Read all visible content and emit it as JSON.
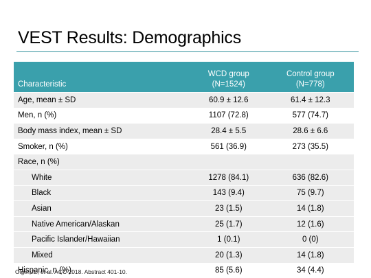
{
  "slide": {
    "title": "VEST Results: Demographics",
    "footnote": "Olgin JE, et al. ACC 2018. Abstract 401-10."
  },
  "table": {
    "headers": {
      "characteristic": "Characteristic",
      "wcd_line1": "WCD group",
      "wcd_line2": "(N=1524)",
      "control_line1": "Control group",
      "control_line2": "(N=778)"
    },
    "rows": [
      {
        "label": "Age, mean ± SD",
        "wcd": "60.9 ± 12.6",
        "control": "61.4 ± 12.3"
      },
      {
        "label": "Men, n (%)",
        "wcd": "1107 (72.8)",
        "control": "577 (74.7)"
      },
      {
        "label": "Body mass index, mean ± SD",
        "wcd": "28.4 ± 5.5",
        "control": "28.6 ± 6.6"
      },
      {
        "label": "Smoker, n (%)",
        "wcd": "561 (36.9)",
        "control": "273 (35.5)"
      },
      {
        "label": "Race, n (%)",
        "wcd": "",
        "control": ""
      },
      {
        "label": "White",
        "wcd": "1278 (84.1)",
        "control": "636 (82.6)"
      },
      {
        "label": "Black",
        "wcd": "143 (9.4)",
        "control": "75 (9.7)"
      },
      {
        "label": "Asian",
        "wcd": "23 (1.5)",
        "control": "14 (1.8)"
      },
      {
        "label": "Native American/Alaskan",
        "wcd": "25 (1.7)",
        "control": "12 (1.6)"
      },
      {
        "label": "Pacific Islander/Hawaiian",
        "wcd": "1 (0.1)",
        "control": "0 (0)"
      },
      {
        "label": "Mixed",
        "wcd": "20 (1.3)",
        "control": "14 (1.8)"
      },
      {
        "label": "Hispanic, n (%)",
        "wcd": "85 (5.6)",
        "control": "34 (4.4)"
      }
    ]
  },
  "colors": {
    "header_bg": "#3aa0ac",
    "rule": "#2f8f9a",
    "row_shade": "#ececec"
  }
}
